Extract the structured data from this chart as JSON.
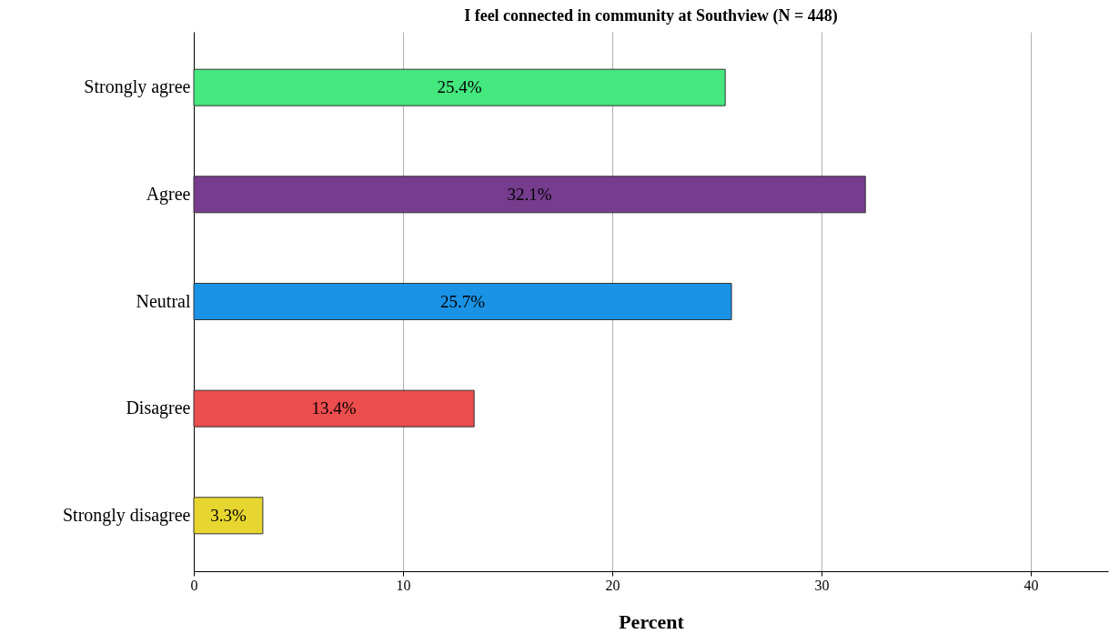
{
  "chart_data": {
    "type": "bar",
    "orientation": "horizontal",
    "title": "I feel connected in community at Southview (N = 448)",
    "xlabel": "Percent",
    "categories": [
      "Strongly agree",
      "Agree",
      "Neutral",
      "Disagree",
      "Strongly disagree"
    ],
    "values": [
      25.4,
      32.1,
      25.7,
      13.4,
      3.3
    ],
    "colors": [
      "#44e87e",
      "#763c8e",
      "#1a93e6",
      "#ec4d4d",
      "#e8d630"
    ],
    "value_labels": [
      "25.4%",
      "32.1%",
      "25.7%",
      "13.4%",
      "3.3%"
    ],
    "xlim": [
      0,
      43.7
    ],
    "xticks": [
      0,
      10,
      20,
      30,
      40
    ],
    "grid": "x"
  }
}
